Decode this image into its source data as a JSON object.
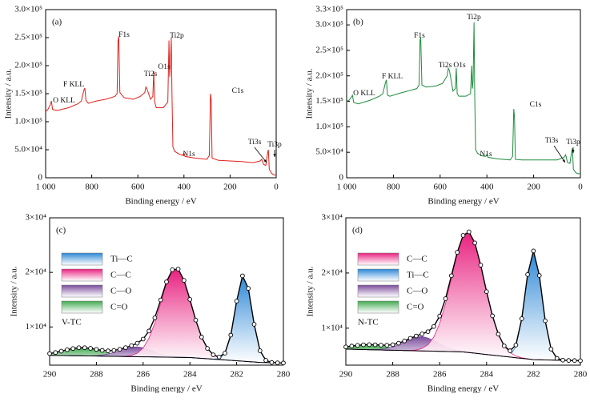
{
  "chart_data": [
    {
      "type": "line",
      "label": "(a)",
      "xlabel": "Binding energy / eV",
      "ylabel": "Intensity / a.u.",
      "color": "#e0201b",
      "x": [
        1000,
        990,
        980,
        975,
        970,
        950,
        900,
        860,
        845,
        835,
        830,
        825,
        815,
        780,
        740,
        700,
        690,
        686,
        683,
        678,
        660,
        620,
        590,
        570,
        565,
        560,
        545,
        535,
        531,
        527,
        520,
        490,
        470,
        465,
        462,
        459,
        455,
        452,
        448,
        440,
        420,
        405,
        400,
        395,
        350,
        300,
        290,
        285,
        282,
        278,
        250,
        200,
        150,
        100,
        70,
        63,
        55,
        45,
        37,
        34,
        30,
        20,
        10,
        0
      ],
      "values": [
        118000,
        122000,
        130000,
        137000,
        122000,
        120000,
        125000,
        132000,
        137000,
        155000,
        160000,
        138000,
        133000,
        137000,
        140000,
        145000,
        150000,
        245000,
        252000,
        152000,
        143000,
        140000,
        145000,
        152000,
        162000,
        158000,
        140000,
        145000,
        190000,
        135000,
        125000,
        125000,
        135000,
        245000,
        180000,
        200000,
        250000,
        150000,
        55000,
        47000,
        42000,
        40000,
        44000,
        38000,
        35000,
        33000,
        40000,
        150000,
        140000,
        35000,
        31000,
        30000,
        29000,
        27000,
        30000,
        33000,
        24000,
        22000,
        45000,
        50000,
        15000,
        8000,
        5000,
        5000
      ],
      "annotations": [
        "O KLL",
        "F KLL",
        "F1s",
        "Ti2s",
        "O1s",
        "Ti2p",
        "N1s",
        "C1s",
        "Ti3s",
        "Ti3p"
      ],
      "xlim": [
        1000,
        0
      ],
      "xticks": [
        {
          "value": 1000,
          "label": "1 000"
        },
        800,
        600,
        400,
        200,
        0
      ],
      "ylim": [
        0,
        300000
      ],
      "yticks": [
        0,
        {
          "value": 50000,
          "label": "5.0×10⁴"
        },
        {
          "value": 100000,
          "label": "1.0×10⁵"
        },
        {
          "value": 150000,
          "label": "1.5×10⁵"
        },
        {
          "value": 200000,
          "label": "2.0×10⁵"
        },
        {
          "value": 250000,
          "label": "2.5×10⁵"
        },
        {
          "value": 300000,
          "label": "3.0×10⁵"
        }
      ]
    },
    {
      "type": "line",
      "label": "(b)",
      "xlabel": "Binding energy / eV",
      "ylabel": "Intensity / a.u.",
      "color": "#1e8a3c",
      "x": [
        1000,
        990,
        980,
        975,
        970,
        950,
        900,
        860,
        845,
        835,
        830,
        825,
        815,
        780,
        740,
        700,
        690,
        686,
        683,
        678,
        660,
        620,
        590,
        570,
        565,
        560,
        545,
        535,
        531,
        527,
        520,
        490,
        470,
        465,
        462,
        459,
        455,
        452,
        448,
        440,
        420,
        405,
        400,
        395,
        350,
        300,
        290,
        285,
        282,
        278,
        250,
        200,
        150,
        100,
        70,
        63,
        55,
        45,
        37,
        34,
        30,
        20,
        10,
        0
      ],
      "values": [
        150000,
        152000,
        158000,
        162000,
        148000,
        145000,
        152000,
        160000,
        165000,
        185000,
        192000,
        162000,
        160000,
        165000,
        170000,
        175000,
        182000,
        270000,
        275000,
        182000,
        178000,
        180000,
        185000,
        200000,
        215000,
        210000,
        170000,
        175000,
        215000,
        165000,
        160000,
        160000,
        165000,
        220000,
        175000,
        190000,
        305000,
        160000,
        55000,
        48000,
        43000,
        42000,
        46000,
        40000,
        37000,
        35000,
        42000,
        135000,
        120000,
        36000,
        35000,
        35000,
        35000,
        35000,
        40000,
        45000,
        30000,
        28000,
        52000,
        58000,
        17000,
        10000,
        8000,
        8000
      ],
      "annotations": [
        "O KLL",
        "F KLL",
        "F1s",
        "Ti2s",
        "O1s",
        "Ti2p",
        "N1s",
        "C1s",
        "Ti3s",
        "Ti3p"
      ],
      "xlim": [
        1000,
        0
      ],
      "xticks": [
        {
          "value": 1000,
          "label": "1 000"
        },
        800,
        600,
        400,
        200,
        0
      ],
      "ylim": [
        0,
        330000
      ],
      "yticks": [
        0,
        {
          "value": 50000,
          "label": "5.0×10⁴"
        },
        {
          "value": 100000,
          "label": "1.0×10⁵"
        },
        {
          "value": 150000,
          "label": "1.5×10⁵"
        },
        {
          "value": 200000,
          "label": "2.0×10⁵"
        },
        {
          "value": 250000,
          "label": "2.5×10⁵"
        },
        {
          "value": 300000,
          "label": "3.0×10⁵"
        },
        {
          "value": 330000,
          "label": "3.3×10⁵"
        }
      ]
    },
    {
      "type": "xps-fit",
      "label": "(c)",
      "sample": "V-TC",
      "xlabel": "Binding energy / eV",
      "ylabel": "Intensity / a.u.",
      "x": [
        290,
        289.75,
        289.5,
        289.25,
        289,
        288.75,
        288.5,
        288.25,
        288,
        287.75,
        287.5,
        287.25,
        287,
        286.75,
        286.5,
        286.25,
        286,
        285.75,
        285.5,
        285.25,
        285,
        284.75,
        284.5,
        284.25,
        284,
        283.75,
        283.5,
        283.25,
        283,
        282.75,
        282.5,
        282.25,
        282,
        281.75,
        281.5,
        281.25,
        281,
        280.75,
        280.5,
        280.25,
        280
      ],
      "values": [
        5120,
        5320,
        5570,
        5830,
        6050,
        6190,
        6200,
        6080,
        5890,
        5710,
        5620,
        5700,
        5910,
        6210,
        6580,
        7020,
        7780,
        9250,
        11680,
        14950,
        18270,
        20480,
        20610,
        18540,
        15050,
        11260,
        8150,
        6070,
        4900,
        4490,
        5200,
        8500,
        14740,
        19370,
        17070,
        10490,
        5640,
        3880,
        3490,
        3430,
        3400
      ],
      "background": [
        4800,
        4780,
        4770,
        4750,
        4730,
        4720,
        4700,
        4680,
        4670,
        4650,
        4630,
        4620,
        4600,
        4580,
        4570,
        4550,
        4530,
        4520,
        4500,
        4480,
        4470,
        4450,
        4430,
        4420,
        4400,
        4330,
        4250,
        4180,
        4100,
        4030,
        3950,
        3880,
        3800,
        3730,
        3650,
        3580,
        3500,
        3480,
        3450,
        3430,
        3400
      ],
      "series": [
        {
          "name": "Ti—C",
          "color": "#2a86d6",
          "values": [
            0,
            0,
            0,
            0,
            0,
            0,
            0,
            0,
            0,
            0,
            0,
            0,
            0,
            0,
            0,
            0,
            0,
            0,
            0,
            0,
            0,
            0,
            0,
            0,
            0,
            0,
            0,
            0,
            20,
            180,
            1160,
            4600,
            10940,
            15640,
            13420,
            6910,
            2140,
            400,
            40,
            0,
            0
          ]
        },
        {
          "name": "C—C",
          "color": "#e8217f",
          "values": [
            0,
            0,
            0,
            0,
            0,
            0,
            0,
            0,
            0,
            0,
            0,
            0,
            20,
            70,
            230,
            650,
            1600,
            3410,
            6240,
            9890,
            13480,
            15870,
            16110,
            14100,
            10640,
            6930,
            3900,
            1890,
            780,
            280,
            90,
            20,
            0,
            0,
            0,
            0,
            0,
            0,
            0,
            0,
            0
          ]
        },
        {
          "name": "C—O",
          "color": "#7a4a9c",
          "values": [
            0,
            0,
            0,
            0,
            0,
            0,
            10,
            40,
            90,
            210,
            410,
            720,
            1090,
            1460,
            1730,
            1800,
            1640,
            1320,
            940,
            580,
            320,
            160,
            70,
            20,
            10,
            0,
            0,
            0,
            0,
            0,
            0,
            0,
            0,
            0,
            0,
            0,
            0,
            0,
            0,
            0,
            0
          ]
        },
        {
          "name": "C=O",
          "color": "#3fa84f",
          "values": [
            320,
            540,
            800,
            1080,
            1320,
            1470,
            1490,
            1360,
            1130,
            850,
            580,
            360,
            200,
            100,
            50,
            20,
            10,
            0,
            0,
            0,
            0,
            0,
            0,
            0,
            0,
            0,
            0,
            0,
            0,
            0,
            0,
            0,
            0,
            0,
            0,
            0,
            0,
            0,
            0,
            0,
            0
          ]
        }
      ],
      "xlim": [
        290,
        280
      ],
      "xticks": [
        290,
        288,
        286,
        284,
        282,
        280
      ],
      "ylim": [
        3000,
        30000
      ],
      "yticks": [
        {
          "value": 10000,
          "label": "1×10⁴"
        },
        {
          "value": 20000,
          "label": "2×10⁴"
        },
        {
          "value": 30000,
          "label": "3×10⁴"
        }
      ]
    },
    {
      "type": "xps-fit",
      "label": "(d)",
      "sample": "N-TC",
      "xlabel": "Binding energy / eV",
      "ylabel": "Intensity / a.u.",
      "x": [
        290,
        289.75,
        289.5,
        289.25,
        289,
        288.75,
        288.5,
        288.25,
        288,
        287.75,
        287.5,
        287.25,
        287,
        286.75,
        286.5,
        286.25,
        286,
        285.75,
        285.5,
        285.25,
        285,
        284.75,
        284.5,
        284.25,
        284,
        283.75,
        283.5,
        283.25,
        283,
        282.75,
        282.5,
        282.25,
        282,
        281.75,
        281.5,
        281.25,
        281,
        280.75,
        280.5,
        280.25,
        280
      ],
      "values": [
        6610,
        6760,
        6890,
        6990,
        7020,
        6990,
        6930,
        6910,
        7010,
        7280,
        7690,
        8170,
        8590,
        8960,
        9370,
        10300,
        12190,
        15350,
        19510,
        23750,
        26820,
        27460,
        25450,
        21420,
        16620,
        12240,
        8920,
        6790,
        5910,
        6940,
        11720,
        19720,
        24000,
        19550,
        11340,
        6210,
        4530,
        4210,
        4150,
        4130,
        4100
      ],
      "background": [
        6200,
        6180,
        6150,
        6130,
        6100,
        6080,
        6050,
        6030,
        6000,
        5980,
        5950,
        5930,
        5900,
        5880,
        5850,
        5830,
        5800,
        5780,
        5750,
        5730,
        5700,
        5580,
        5470,
        5350,
        5230,
        5120,
        5000,
        4880,
        4770,
        4650,
        4530,
        4420,
        4300,
        4280,
        4250,
        4230,
        4200,
        4180,
        4150,
        4130,
        4100
      ],
      "series": [
        {
          "name": "C—C",
          "color": "#e8217f",
          "values": [
            0,
            0,
            0,
            0,
            0,
            0,
            0,
            0,
            0,
            0,
            10,
            50,
            150,
            460,
            1140,
            2560,
            5040,
            8720,
            13290,
            17800,
            21020,
            21840,
            19970,
            16070,
            11390,
            7120,
            3920,
            1880,
            810,
            310,
            100,
            30,
            0,
            0,
            0,
            0,
            0,
            0,
            0,
            0,
            0
          ]
        },
        {
          "name": "Ti—C",
          "color": "#2a86d6",
          "values": [
            0,
            0,
            0,
            0,
            0,
            0,
            0,
            0,
            0,
            0,
            0,
            0,
            0,
            0,
            0,
            0,
            0,
            0,
            0,
            0,
            0,
            0,
            0,
            0,
            0,
            0,
            0,
            30,
            330,
            1980,
            7090,
            15270,
            19700,
            15270,
            7090,
            1980,
            330,
            30,
            0,
            0,
            0
          ]
        },
        {
          "name": "C—O",
          "color": "#7a4a9c",
          "values": [
            0,
            0,
            0,
            0,
            20,
            50,
            140,
            300,
            600,
            1030,
            1580,
            2110,
            2500,
            2600,
            2370,
            1910,
            1350,
            850,
            470,
            220,
            100,
            40,
            10,
            0,
            0,
            0,
            0,
            0,
            0,
            0,
            0,
            0,
            0,
            0,
            0,
            0,
            0,
            0,
            0,
            0,
            0
          ]
        },
        {
          "name": "C=O",
          "color": "#3fa84f",
          "values": [
            410,
            580,
            740,
            860,
            900,
            860,
            740,
            580,
            410,
            270,
            150,
            80,
            40,
            20,
            10,
            0,
            0,
            0,
            0,
            0,
            0,
            0,
            0,
            0,
            0,
            0,
            0,
            0,
            0,
            0,
            0,
            0,
            0,
            0,
            0,
            0,
            0,
            0,
            0,
            0,
            0
          ]
        }
      ],
      "xlim": [
        290,
        280
      ],
      "xticks": [
        290,
        288,
        286,
        284,
        282,
        280
      ],
      "ylim": [
        3300,
        30000
      ],
      "yticks": [
        {
          "value": 10000,
          "label": "1×10⁴"
        },
        {
          "value": 20000,
          "label": "2×10⁴"
        },
        {
          "value": 30000,
          "label": "3×10⁴"
        }
      ]
    }
  ]
}
